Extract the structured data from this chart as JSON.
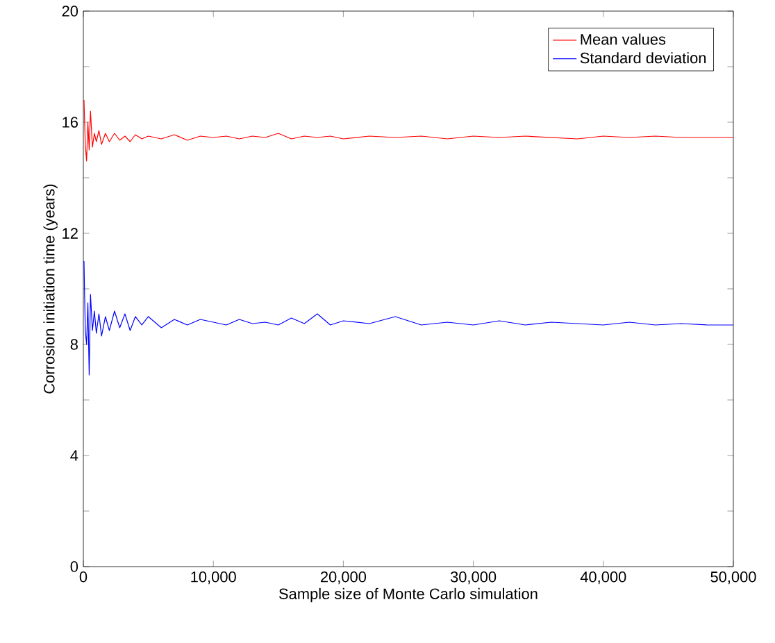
{
  "chart_data": {
    "type": "line",
    "xlabel": "Sample size of Monte Carlo simulation",
    "ylabel": "Corrosion initiation time (years)",
    "x": [
      50,
      150,
      250,
      350,
      450,
      550,
      700,
      850,
      1000,
      1200,
      1400,
      1700,
      2000,
      2400,
      2800,
      3200,
      3600,
      4000,
      4500,
      5000,
      6000,
      7000,
      8000,
      9000,
      10000,
      11000,
      12000,
      13000,
      14000,
      15000,
      16000,
      17000,
      18000,
      19000,
      20000,
      22000,
      24000,
      26000,
      28000,
      30000,
      32000,
      34000,
      36000,
      38000,
      40000,
      42000,
      44000,
      46000,
      48000,
      50000
    ],
    "series": [
      {
        "name": "Mean values",
        "color": "#ff0000",
        "values": [
          16.8,
          15.2,
          14.6,
          16.0,
          15.0,
          16.4,
          15.1,
          15.6,
          15.3,
          15.7,
          15.2,
          15.6,
          15.3,
          15.6,
          15.35,
          15.5,
          15.3,
          15.55,
          15.4,
          15.5,
          15.4,
          15.55,
          15.35,
          15.5,
          15.45,
          15.5,
          15.4,
          15.5,
          15.45,
          15.6,
          15.4,
          15.5,
          15.45,
          15.5,
          15.4,
          15.5,
          15.45,
          15.5,
          15.4,
          15.5,
          15.45,
          15.5,
          15.45,
          15.4,
          15.5,
          15.45,
          15.5,
          15.45,
          15.45,
          15.45
        ]
      },
      {
        "name": "Standard deviation",
        "color": "#0000ff",
        "values": [
          11.0,
          8.5,
          8.0,
          9.5,
          6.9,
          9.8,
          8.5,
          9.2,
          8.4,
          9.1,
          8.3,
          9.0,
          8.5,
          9.2,
          8.6,
          9.1,
          8.5,
          9.0,
          8.7,
          9.0,
          8.6,
          8.9,
          8.7,
          8.9,
          8.8,
          8.7,
          8.9,
          8.75,
          8.8,
          8.7,
          8.95,
          8.75,
          9.1,
          8.7,
          8.85,
          8.75,
          9.0,
          8.7,
          8.8,
          8.7,
          8.85,
          8.7,
          8.8,
          8.75,
          8.7,
          8.8,
          8.7,
          8.75,
          8.7,
          8.7
        ]
      }
    ],
    "xlim": [
      0,
      50000
    ],
    "ylim": [
      0,
      20
    ],
    "xticks": [
      {
        "value": 0,
        "label": "0"
      },
      {
        "value": 10000,
        "label": "10,000"
      },
      {
        "value": 20000,
        "label": "20,000"
      },
      {
        "value": 30000,
        "label": "30,000"
      },
      {
        "value": 40000,
        "label": "40,000"
      },
      {
        "value": 50000,
        "label": "50,000"
      }
    ],
    "yticks": [
      0,
      {
        "value": 2,
        "label": null
      },
      4,
      {
        "value": 6,
        "label": null
      },
      8,
      {
        "value": 10,
        "label": null
      },
      12,
      {
        "value": 14,
        "label": null
      },
      16,
      {
        "value": 18,
        "label": null
      },
      20
    ],
    "grid": false,
    "legend": "top right",
    "marker": "none",
    "line_style": "solid"
  }
}
